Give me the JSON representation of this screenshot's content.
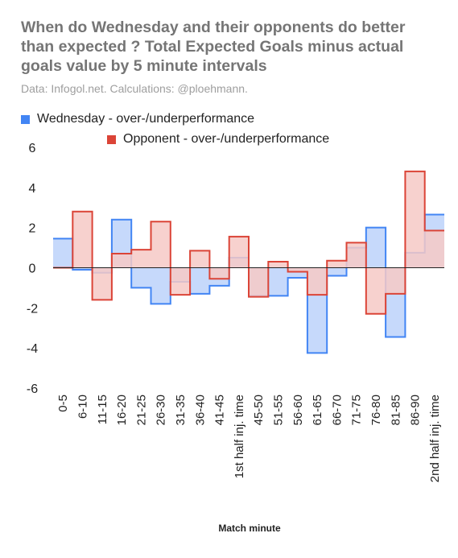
{
  "chart_data": {
    "type": "area",
    "title": "When do Wednesday and their opponents do better than expected ? Total Expected Goals minus actual goals value by 5 minute intervals",
    "subtitle": "Data: Infogol.net. Calculations: @ploehmann.",
    "xlabel": "Match minute",
    "ylabel": "",
    "ylim": [
      -6,
      6
    ],
    "yticks": [
      -6,
      -4,
      -2,
      0,
      2,
      4,
      6
    ],
    "legend_position": "top-left",
    "categories": [
      "0-5",
      "6-10",
      "11-15",
      "16-20",
      "21-25",
      "26-30",
      "31-35",
      "36-40",
      "41-45",
      "1st half inj. time",
      "45-50",
      "51-55",
      "56-60",
      "61-65",
      "66-70",
      "71-75",
      "76-80",
      "81-85",
      "86-90",
      "2nd half inj. time"
    ],
    "series": [
      {
        "name": "Wednesday - over-/underperformance",
        "color": "#4285f4",
        "fill": "#c6d9fb",
        "values": [
          1.45,
          -0.1,
          -0.25,
          2.4,
          -1.0,
          -1.8,
          -0.7,
          -1.3,
          -0.9,
          0.5,
          -1.4,
          -1.4,
          -0.5,
          -4.25,
          -0.4,
          1.0,
          2.0,
          -3.45,
          0.75,
          2.65
        ]
      },
      {
        "name": "Opponent - over-/underperformance",
        "color": "#db4437",
        "fill": "#f6c9c5",
        "values": [
          0.0,
          2.8,
          -1.6,
          0.7,
          0.9,
          2.3,
          -1.35,
          0.85,
          -0.55,
          1.55,
          -1.45,
          0.3,
          -0.2,
          -1.35,
          0.35,
          1.25,
          -2.3,
          -1.3,
          4.8,
          1.85
        ]
      }
    ]
  }
}
